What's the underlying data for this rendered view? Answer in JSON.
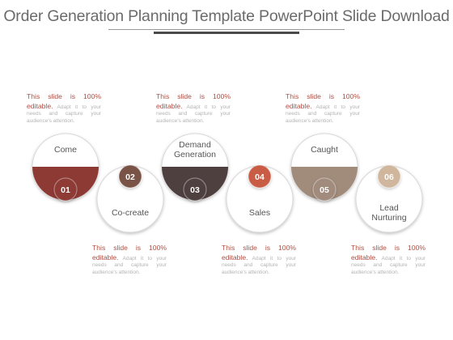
{
  "title": "Order Generation Planning Template PowerPoint Slide Download",
  "description": {
    "highlight": "This slide is 100% editable.",
    "body": "Adapt it to your needs and capture your audience's attention."
  },
  "steps": [
    {
      "number": "01",
      "label": "Come",
      "color": "#8e3a34"
    },
    {
      "number": "02",
      "label": "Co-create",
      "color": "#7a5247"
    },
    {
      "number": "03",
      "label": "Demand Generation",
      "color": "#4f4040"
    },
    {
      "number": "04",
      "label": "Sales",
      "color": "#c95c45"
    },
    {
      "number": "05",
      "label": "Caught",
      "color": "#a18b7b"
    },
    {
      "number": "06",
      "label": "Lead Nurturing",
      "color": "#cfb69c"
    }
  ]
}
